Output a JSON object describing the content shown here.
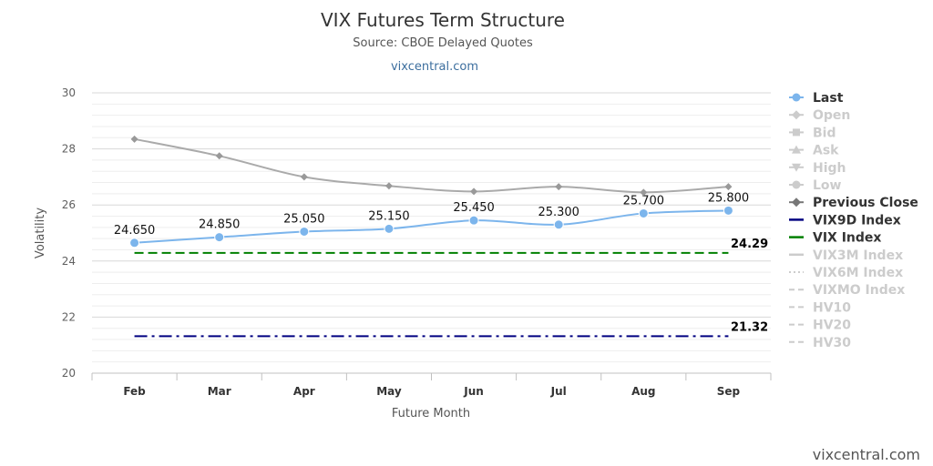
{
  "chart_data": {
    "type": "line",
    "title": "VIX Futures Term Structure",
    "subtitle": "Source: CBOE Delayed Quotes",
    "link_text": "vixcentral.com",
    "credit": "vixcentral.com",
    "xlabel": "Future Month",
    "ylabel": "Volatility",
    "ylim": [
      20,
      30
    ],
    "yticks": [
      20,
      22,
      24,
      26,
      28,
      30
    ],
    "categories": [
      "Feb",
      "Mar",
      "Apr",
      "May",
      "Jun",
      "Jul",
      "Aug",
      "Sep"
    ],
    "grid": true,
    "legend_position": "right",
    "series": [
      {
        "name": "Last",
        "color": "#7cb5ec",
        "values": [
          24.65,
          24.85,
          25.05,
          25.15,
          25.45,
          25.3,
          25.7,
          25.8
        ],
        "data_labels": [
          "24.650",
          "24.850",
          "25.050",
          "25.150",
          "25.450",
          "25.300",
          "25.700",
          "25.800"
        ]
      },
      {
        "name": "Previous Close",
        "color": "#aaaaaa",
        "values": [
          28.35,
          27.75,
          27.0,
          26.68,
          26.48,
          26.65,
          26.45,
          26.65
        ]
      },
      {
        "name": "VIX9D Index",
        "color": "#000080",
        "dash": "dash-dot",
        "value": 21.32,
        "end_label": "21.32"
      },
      {
        "name": "VIX Index",
        "color": "#008000",
        "dash": "dash",
        "value": 24.29,
        "end_label": "24.29"
      }
    ],
    "legend": [
      {
        "name": "Last",
        "active": true,
        "color": "#7cb5ec",
        "symbol": "circle"
      },
      {
        "name": "Open",
        "active": false,
        "color": "#cccccc",
        "symbol": "diamond"
      },
      {
        "name": "Bid",
        "active": false,
        "color": "#cccccc",
        "symbol": "square"
      },
      {
        "name": "Ask",
        "active": false,
        "color": "#cccccc",
        "symbol": "triangle-up"
      },
      {
        "name": "High",
        "active": false,
        "color": "#cccccc",
        "symbol": "triangle-down"
      },
      {
        "name": "Low",
        "active": false,
        "color": "#cccccc",
        "symbol": "circle"
      },
      {
        "name": "Previous Close",
        "active": true,
        "color": "#777777",
        "symbol": "diamond"
      },
      {
        "name": "VIX9D Index",
        "active": true,
        "color": "#000080",
        "symbol": "line"
      },
      {
        "name": "VIX Index",
        "active": true,
        "color": "#008000",
        "symbol": "line"
      },
      {
        "name": "VIX3M Index",
        "active": false,
        "color": "#cccccc",
        "symbol": "line"
      },
      {
        "name": "VIX6M Index",
        "active": false,
        "color": "#cccccc",
        "symbol": "dotted"
      },
      {
        "name": "VIXMO Index",
        "active": false,
        "color": "#cccccc",
        "symbol": "dashed"
      },
      {
        "name": "HV10",
        "active": false,
        "color": "#cccccc",
        "symbol": "dashed"
      },
      {
        "name": "HV20",
        "active": false,
        "color": "#cccccc",
        "symbol": "dashed"
      },
      {
        "name": "HV30",
        "active": false,
        "color": "#cccccc",
        "symbol": "dashed"
      }
    ]
  }
}
